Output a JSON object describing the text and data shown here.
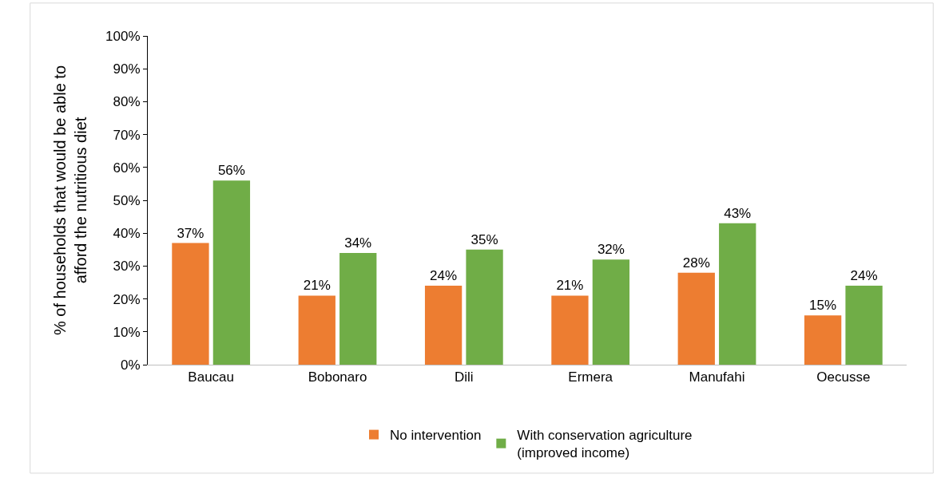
{
  "chart_data": {
    "type": "bar",
    "ylabel": "% of households that would be able to\nafford the nutritious diet",
    "categories": [
      "Baucau",
      "Bobonaro",
      "Dili",
      "Ermera",
      "Manufahi",
      "Oecusse"
    ],
    "series": [
      {
        "name": "No intervention",
        "color": "#ed7d31",
        "values": [
          37,
          21,
          24,
          21,
          28,
          15
        ]
      },
      {
        "name": "With conservation agriculture\n(improved income)",
        "color": "#70ad47",
        "values": [
          56,
          34,
          35,
          32,
          43,
          24
        ]
      }
    ],
    "ylim": [
      0,
      100
    ],
    "yticks": [
      {
        "value": 0,
        "label": "0%"
      },
      {
        "value": 10,
        "label": "10%"
      },
      {
        "value": 20,
        "label": "20%"
      },
      {
        "value": 30,
        "label": "30%"
      },
      {
        "value": 40,
        "label": "40%"
      },
      {
        "value": 50,
        "label": "50%"
      },
      {
        "value": 60,
        "label": "60%"
      },
      {
        "value": 70,
        "label": "70%"
      },
      {
        "value": 80,
        "label": "80%"
      },
      {
        "value": 90,
        "label": "90%"
      },
      {
        "value": 100,
        "label": "100%"
      }
    ],
    "value_labels": [
      [
        "37%",
        "21%",
        "24%",
        "21%",
        "28%",
        "15%"
      ],
      [
        "56%",
        "34%",
        "35%",
        "32%",
        "43%",
        "24%"
      ]
    ],
    "grid": false,
    "legend": "bottom"
  }
}
